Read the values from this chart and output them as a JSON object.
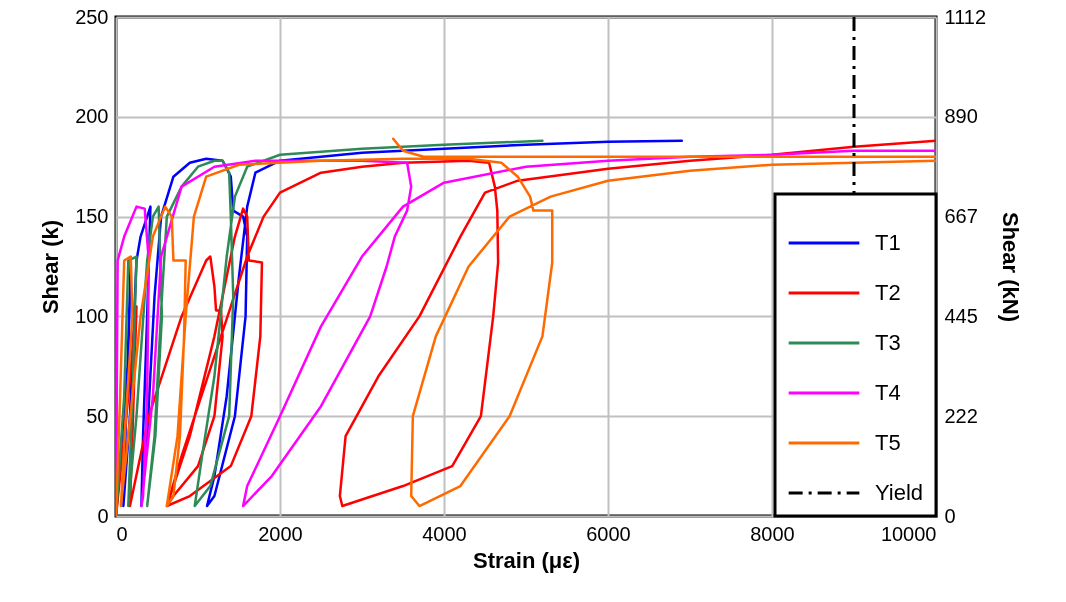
{
  "chart_data": {
    "type": "line",
    "xlabel": "Strain (με)",
    "ylabel": "Shear (k)",
    "y2label": "Shear (kN)",
    "xlim": [
      0,
      10000
    ],
    "xticks": [
      0,
      2000,
      4000,
      6000,
      8000,
      10000
    ],
    "ylim": [
      0,
      250
    ],
    "yticks": [
      0,
      50,
      100,
      150,
      200,
      250
    ],
    "y2lim": [
      0,
      1112
    ],
    "y2ticks": [
      0,
      222,
      445,
      667,
      890,
      1112
    ],
    "grid": true,
    "legend": "bottom right",
    "line_style": "solid",
    "ref_lines": [
      {
        "axis": "x",
        "value": 9000,
        "label": "Yield",
        "color": "#000000",
        "line_style": "dashed"
      }
    ],
    "series": [
      {
        "name": "T1",
        "color": "#0000ff",
        "x": [
          0,
          150,
          180,
          130,
          90,
          170,
          250,
          300,
          420,
          380,
          330,
          310,
          380,
          470,
          550,
          700,
          900,
          1100,
          1300,
          1400,
          1430,
          1550,
          1600,
          1580,
          1450,
          1200,
          1110,
          1200,
          1350,
          1500,
          1600,
          1700,
          2000,
          3000,
          4000,
          5000,
          6000,
          6900
        ],
        "values": [
          0,
          80,
          128,
          60,
          5,
          50,
          128,
          140,
          155,
          100,
          40,
          5,
          40,
          110,
          150,
          170,
          177,
          179,
          178,
          170,
          153,
          150,
          140,
          100,
          50,
          10,
          5,
          20,
          60,
          120,
          155,
          172,
          178,
          182,
          184,
          186,
          187.5,
          188
        ]
      },
      {
        "name": "T2",
        "color": "#ff0000",
        "x": [
          0,
          150,
          250,
          200,
          170,
          400,
          800,
          1100,
          1150,
          1200,
          1220,
          1280,
          1300,
          1200,
          1000,
          700,
          620,
          900,
          1200,
          1450,
          1550,
          1600,
          1620,
          1780,
          1760,
          1650,
          1400,
          900,
          620,
          800,
          1200,
          1600,
          1800,
          2000,
          2500,
          3000,
          3500,
          4300,
          4550,
          4620,
          4650,
          4660,
          4600,
          4450,
          4100,
          3500,
          2760,
          2730,
          2800,
          3200,
          3700,
          4200,
          4500,
          4900,
          6000,
          7000,
          8000,
          9000,
          10000
        ],
        "values": [
          0,
          60,
          105,
          40,
          5,
          50,
          100,
          128,
          130,
          115,
          103,
          103,
          90,
          50,
          25,
          10,
          5,
          40,
          90,
          140,
          154,
          150,
          128,
          127,
          90,
          50,
          25,
          10,
          5,
          30,
          80,
          130,
          150,
          162,
          172,
          175,
          177,
          178,
          177,
          165,
          153,
          127,
          100,
          50,
          25,
          15,
          5,
          10,
          40,
          70,
          100,
          140,
          162,
          168,
          174,
          178,
          181,
          185,
          188
        ]
      },
      {
        "name": "T3",
        "color": "#2e8b57",
        "x": [
          0,
          100,
          150,
          250,
          200,
          150,
          250,
          380,
          450,
          520,
          560,
          480,
          380,
          470,
          560,
          620,
          800,
          1000,
          1200,
          1300,
          1380,
          1400,
          1430,
          1380,
          1150,
          960,
          1050,
          1200,
          1350,
          1450,
          1600,
          2000,
          3000,
          4000,
          5200
        ],
        "values": [
          0,
          60,
          128,
          130,
          60,
          5,
          50,
          128,
          150,
          155,
          100,
          40,
          5,
          40,
          110,
          150,
          165,
          175,
          178,
          178,
          172,
          150,
          110,
          50,
          15,
          5,
          30,
          70,
          130,
          160,
          175,
          181,
          184,
          186,
          188
        ]
      },
      {
        "name": "T4",
        "color": "#ff00ff",
        "x": [
          0,
          20,
          100,
          250,
          350,
          400,
          380,
          330,
          310,
          450,
          550,
          800,
          1200,
          1700,
          3000,
          3550,
          3600,
          3550,
          3400,
          3300,
          3100,
          2500,
          1900,
          1550,
          1600,
          2000,
          2500,
          3000,
          3500,
          4000,
          5000,
          6000,
          7000,
          8000,
          9000,
          10000
        ],
        "values": [
          0,
          128,
          140,
          155,
          154,
          128,
          60,
          10,
          5,
          60,
          130,
          165,
          175,
          178,
          178,
          177,
          165,
          153,
          140,
          125,
          100,
          55,
          20,
          5,
          15,
          50,
          95,
          130,
          155,
          167,
          175,
          178,
          180,
          181,
          183,
          183
        ]
      },
      {
        "name": "T5",
        "color": "#ff6a00",
        "x": [
          0,
          50,
          100,
          180,
          200,
          120,
          60,
          150,
          300,
          450,
          600,
          680,
          700,
          850,
          830,
          780,
          700,
          620,
          750,
          850,
          950,
          1100,
          1500,
          2500,
          3500,
          4300,
          4700,
          4900,
          5050,
          5090,
          5320,
          5320,
          5200,
          4800,
          4200,
          3700,
          3600,
          3620,
          3900,
          4300,
          4800,
          5300,
          6000,
          7000,
          8000,
          10000,
          null,
          3380,
          3500,
          3750,
          6000,
          10000
        ],
        "values": [
          0,
          60,
          128,
          130,
          100,
          50,
          5,
          40,
          100,
          140,
          155,
          150,
          128,
          128,
          90,
          40,
          10,
          5,
          40,
          100,
          150,
          170,
          176,
          178,
          179,
          179,
          177,
          170,
          160,
          153,
          153,
          127,
          90,
          50,
          15,
          5,
          10,
          50,
          90,
          125,
          150,
          160,
          168,
          173,
          176,
          178,
          null,
          189,
          183,
          180,
          180,
          180
        ]
      }
    ]
  }
}
